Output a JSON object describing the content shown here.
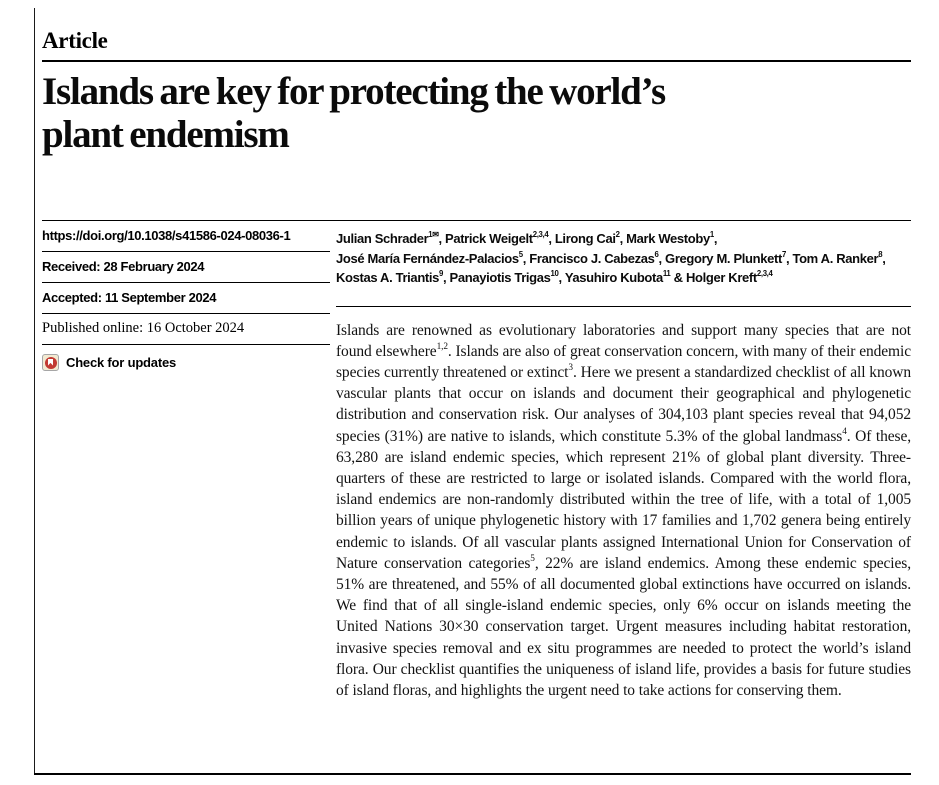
{
  "article": {
    "kicker": "Article",
    "title": "Islands are key for protecting the world’s\nplant endemism"
  },
  "meta": {
    "doi": "https://doi.org/10.1038/s41586-024-08036-1",
    "received": "Received: 28 February 2024",
    "accepted": "Accepted: 11 September 2024",
    "published_online": "Published online: 16 October 2024",
    "check_for_updates": "Check for updates"
  },
  "icons": {
    "crossmark": "crossmark-bookmark-badge"
  },
  "colors": {
    "text": "#000000",
    "rule": "#000000",
    "crossmark_red": "#c23a32",
    "crossmark_bg": "#f2ead2"
  },
  "authors_html": "Julian Schrader<sup>1✉</sup>, Patrick Weigelt<sup>2,3,4</sup>, Lirong Cai<sup>2</sup>, Mark Westoby<sup>1</sup>,<br>José María Fernández-Palacios<sup>5</sup>, Francisco J. Cabezas<sup>6</sup>, Gregory M. Plunkett<sup>7</sup>, Tom A. Ranker<sup>8</sup>,<br>Kostas A. Triantis<sup>9</sup>, Panayiotis Trigas<sup>10</sup>, Yasuhiro Kubota<sup>11</sup> &amp; Holger Kreft<sup>2,3,4</sup>",
  "abstract_html": "Islands are renowned as evolutionary laboratories and support many species that are not found elsewhere<sup>1,2</sup>. Islands are also of great conservation concern, with many of their endemic species currently threatened or extinct<sup>3</sup>. Here we present a standardized checklist of all known vascular plants that occur on islands and document their geographical and phylogenetic distribution and conservation risk. Our analyses of 304,103 plant species reveal that 94,052 species (31%) are native to islands, which constitute 5.3% of the global landmass<sup>4</sup>. Of these, 63,280 are island endemic species, which represent 21% of global plant diversity. Three-quarters of these are restricted to large or isolated islands. Compared with the world flora, island endemics are non-randomly distributed within the tree of life, with a total of 1,005 billion years of unique phylogenetic history with 17 families and 1,702 genera being entirely endemic to islands. Of all vascular plants assigned International Union for Conservation of Nature conservation categories<sup>5</sup>, 22% are island endemics. Among these endemic species, 51% are threatened, and 55% of all documented global extinctions have occurred on islands. We find that of all single-island endemic species, only 6% occur on islands meeting the United Nations 30×30 conservation target. Urgent measures including habitat restoration, invasive species removal and ex situ programmes are needed to protect the world’s island flora. Our checklist quantifies the uniqueness of island life, provides a basis for future studies of island floras, and highlights the urgent need to take actions for conserving them."
}
